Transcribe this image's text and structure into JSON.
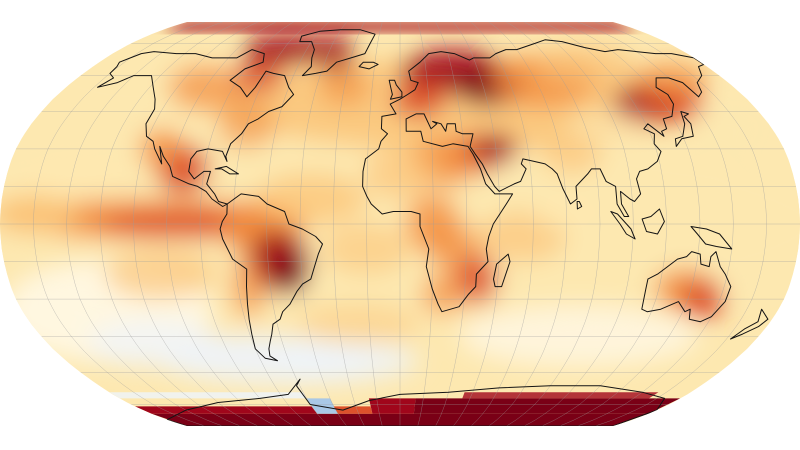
{
  "map": {
    "projection": "robinson",
    "graticule_step_degrees": 15,
    "palette": {
      "cold_deep": "#a9c8e6",
      "cold_light": "#eef4fb",
      "neutral": "#fff8e6",
      "warm_1": "#fde8b0",
      "warm_2": "#fbc57a",
      "warm_3": "#f28c3c",
      "warm_4": "#d9411e",
      "warm_5": "#a0061b",
      "warm_6": "#7a0016"
    },
    "coastline_color": "#141414",
    "graticule_color": "#9c9c9c"
  }
}
